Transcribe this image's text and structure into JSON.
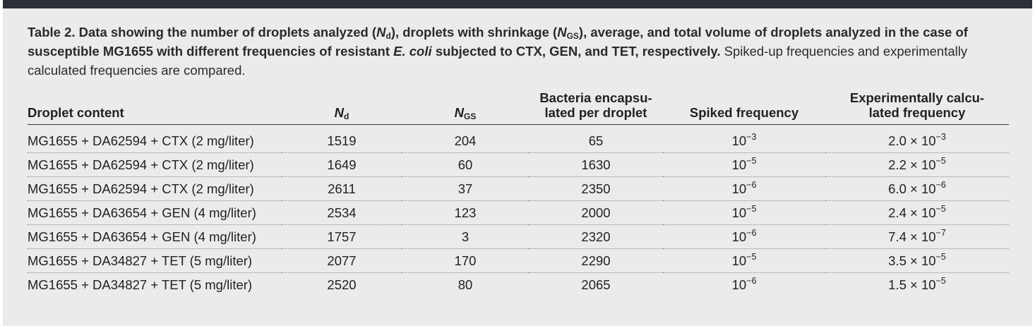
{
  "caption": {
    "p1": "Table 2. Data showing the number of droplets analyzed (",
    "n": "N",
    "d": "d",
    "p2": "), droplets with shrinkage (",
    "gs": "GS",
    "p3": "), average, and total volume of droplets analyzed in the case of susceptible MG1655 with different frequencies of resistant ",
    "ecoli": "E. coli",
    "p4": " subjected to CTX, GEN, and TET, respectively.",
    "rest": " Spiked-up frequencies and experimentally calculated frequencies are compared."
  },
  "headers": {
    "content": "Droplet content",
    "nd_main": "N",
    "nd_sub": "d",
    "ngs_main": "N",
    "ngs_sub": "GS",
    "bacteria_1": "Bacteria encapsu-",
    "bacteria_2": "lated per droplet",
    "spiked": "Spiked frequency",
    "exp_1": "Experimentally calcu-",
    "exp_2": "lated frequency"
  },
  "rows": [
    {
      "content": "MG1655 + DA62594 + CTX (2 mg/liter)",
      "nd": "1519",
      "ngs": "204",
      "bacteria": "65",
      "spiked_base": "10",
      "spiked_exp": "−3",
      "exp_mant": "2.0 × 10",
      "exp_exp": "−3"
    },
    {
      "content": "MG1655 + DA62594 + CTX (2 mg/liter)",
      "nd": "1649",
      "ngs": "60",
      "bacteria": "1630",
      "spiked_base": "10",
      "spiked_exp": "−5",
      "exp_mant": "2.2 × 10",
      "exp_exp": "−5"
    },
    {
      "content": "MG1655 + DA62594 + CTX (2 mg/liter)",
      "nd": "2611",
      "ngs": "37",
      "bacteria": "2350",
      "spiked_base": "10",
      "spiked_exp": "−6",
      "exp_mant": "6.0 × 10",
      "exp_exp": "−6"
    },
    {
      "content": "MG1655 + DA63654 + GEN (4 mg/liter)",
      "nd": "2534",
      "ngs": "123",
      "bacteria": "2000",
      "spiked_base": "10",
      "spiked_exp": "−5",
      "exp_mant": "2.4 × 10",
      "exp_exp": "−5"
    },
    {
      "content": "MG1655 + DA63654 + GEN (4 mg/liter)",
      "nd": "1757",
      "ngs": "3",
      "bacteria": "2320",
      "spiked_base": "10",
      "spiked_exp": "−6",
      "exp_mant": "7.4 × 10",
      "exp_exp": "−7"
    },
    {
      "content": "MG1655 + DA34827 + TET (5 mg/liter)",
      "nd": "2077",
      "ngs": "170",
      "bacteria": "2290",
      "spiked_base": "10",
      "spiked_exp": "−5",
      "exp_mant": "3.5 × 10",
      "exp_exp": "−5"
    },
    {
      "content": "MG1655 + DA34827 + TET (5 mg/liter)",
      "nd": "2520",
      "ngs": "80",
      "bacteria": "2065",
      "spiked_base": "10",
      "spiked_exp": "−6",
      "exp_mant": "1.5 × 10",
      "exp_exp": "−5"
    }
  ]
}
